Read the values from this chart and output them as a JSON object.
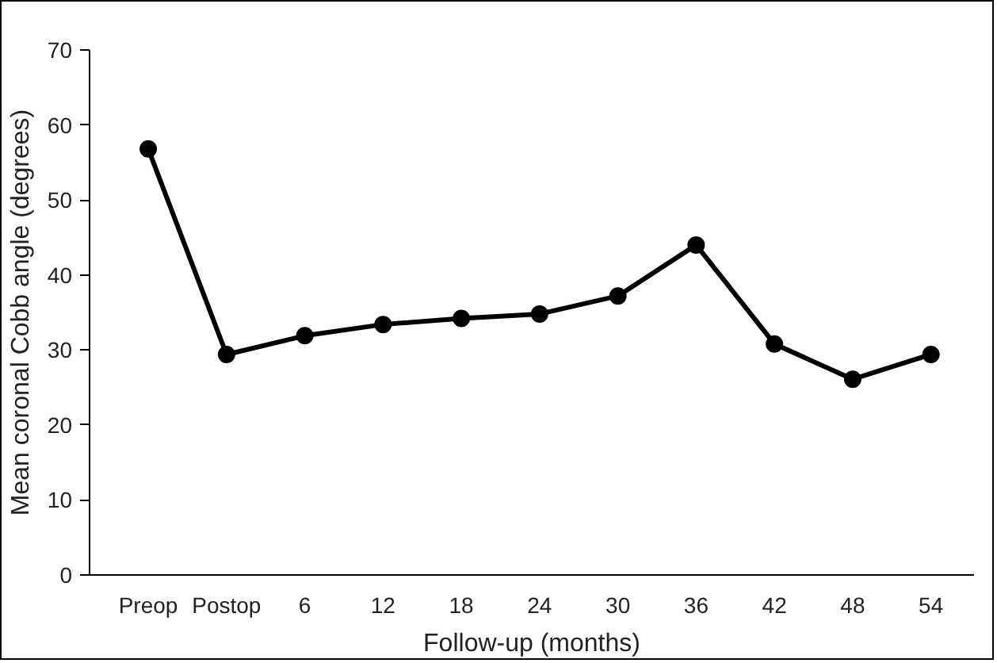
{
  "chart_data": {
    "type": "line",
    "xlabel": "Follow-up (months)",
    "ylabel": "Mean coronal Cobb angle (degrees)",
    "categories": [
      "Preop",
      "Postop",
      "6",
      "12",
      "18",
      "24",
      "30",
      "36",
      "42",
      "48",
      "54"
    ],
    "series": [
      {
        "color": "#000000",
        "values": [
          56.8,
          29.4,
          31.9,
          33.4,
          34.2,
          34.8,
          37.2,
          44.0,
          30.8,
          26.1,
          29.4
        ]
      }
    ],
    "ylim": [
      0,
      70
    ],
    "yticks": [
      0,
      10,
      20,
      30,
      40,
      50,
      60,
      70
    ],
    "grid": false,
    "marker": "circle",
    "line_style": "solid"
  }
}
